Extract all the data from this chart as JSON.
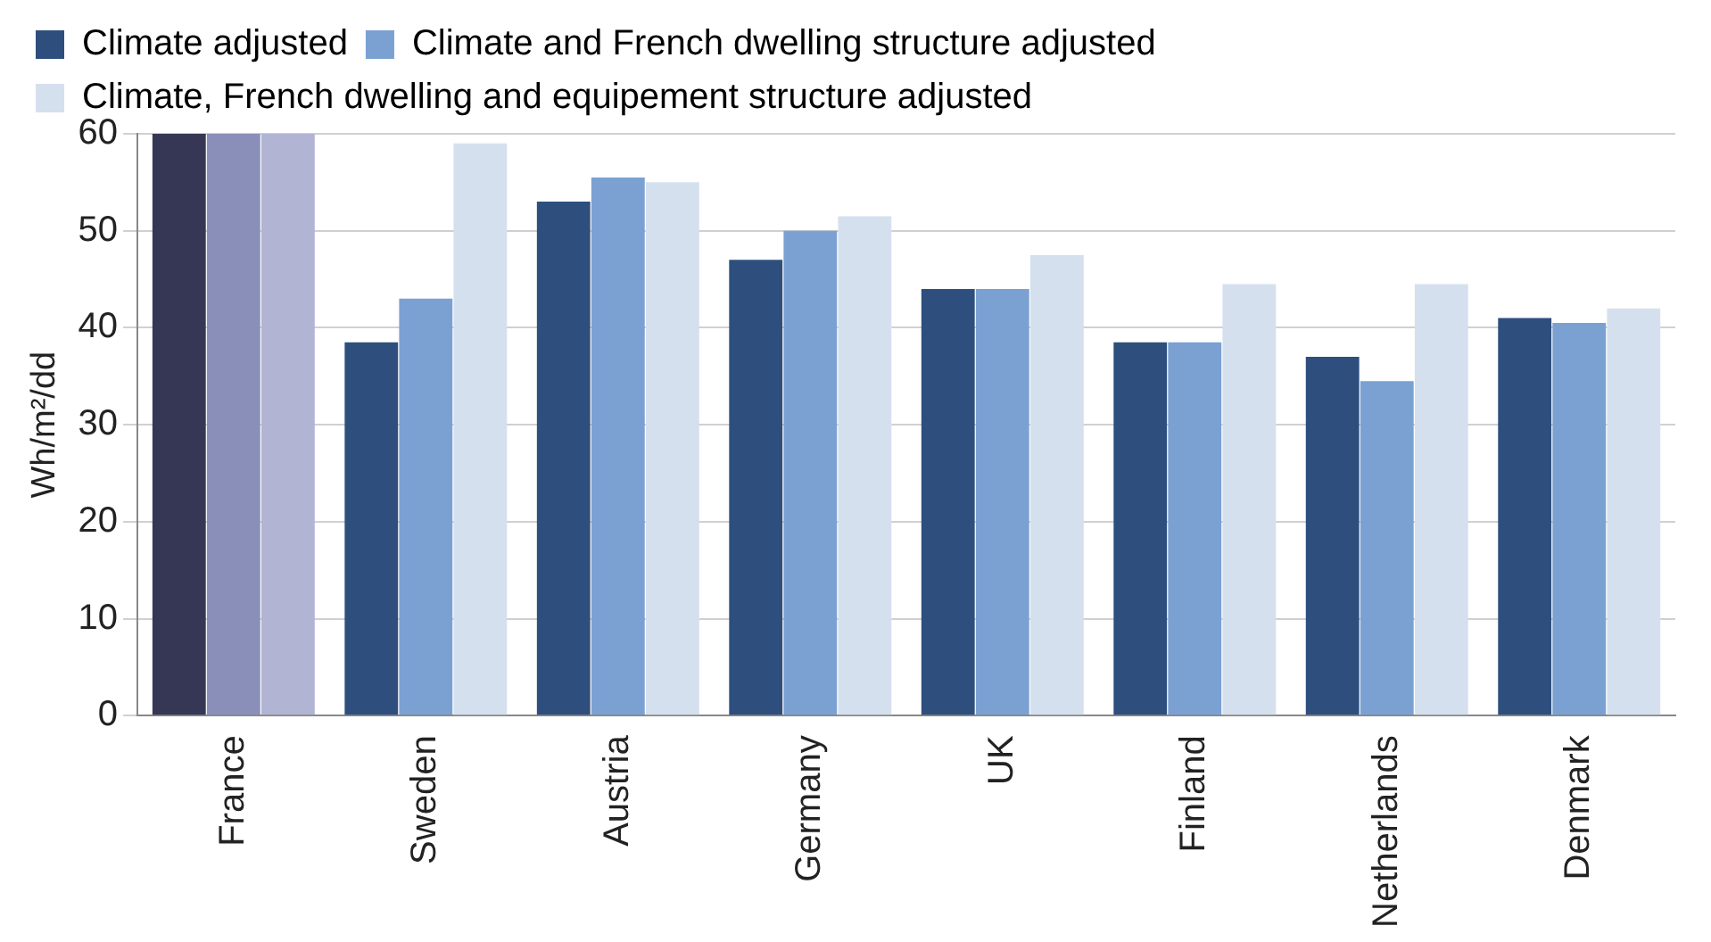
{
  "chart_data": {
    "type": "bar",
    "ylabel": "Wh/m²/dd",
    "categories": [
      "France",
      "Sweden",
      "Austria",
      "Germany",
      "UK",
      "Finland",
      "Netherlands",
      "Denmark"
    ],
    "series": [
      {
        "name": "Climate adjusted",
        "color": "#2e4f7e",
        "colors": [
          "#353755",
          "#2e4f7e",
          "#2e4f7e",
          "#2e4f7e",
          "#2e4f7e",
          "#2e4f7e",
          "#2e4f7e",
          "#2e4f7e"
        ],
        "values": [
          60,
          38.5,
          53,
          47,
          44,
          38.5,
          37,
          41
        ]
      },
      {
        "name": "Climate and French dwelling structure adjusted",
        "color": "#7aa1d2",
        "colors": [
          "#8a8fba",
          "#7aa1d2",
          "#7aa1d2",
          "#7aa1d2",
          "#7aa1d2",
          "#7aa1d2",
          "#7aa1d2",
          "#7aa1d2"
        ],
        "values": [
          60,
          43,
          55.5,
          50,
          44,
          38.5,
          34.5,
          40.5
        ]
      },
      {
        "name": "Climate, French dwelling and equipement structure adjusted",
        "color": "#d5e0ef",
        "colors": [
          "#b2b4d4",
          "#d5e0ef",
          "#d5e0ef",
          "#d5e0ef",
          "#d5e0ef",
          "#d5e0ef",
          "#d5e0ef",
          "#d5e0ef"
        ],
        "values": [
          60,
          59,
          55,
          51.5,
          47.5,
          44.5,
          44.5,
          42
        ]
      }
    ],
    "ylim": [
      0,
      60
    ],
    "yticks": [
      0,
      10,
      20,
      30,
      40,
      50,
      60
    ],
    "grid": "y",
    "legend": "top left"
  }
}
